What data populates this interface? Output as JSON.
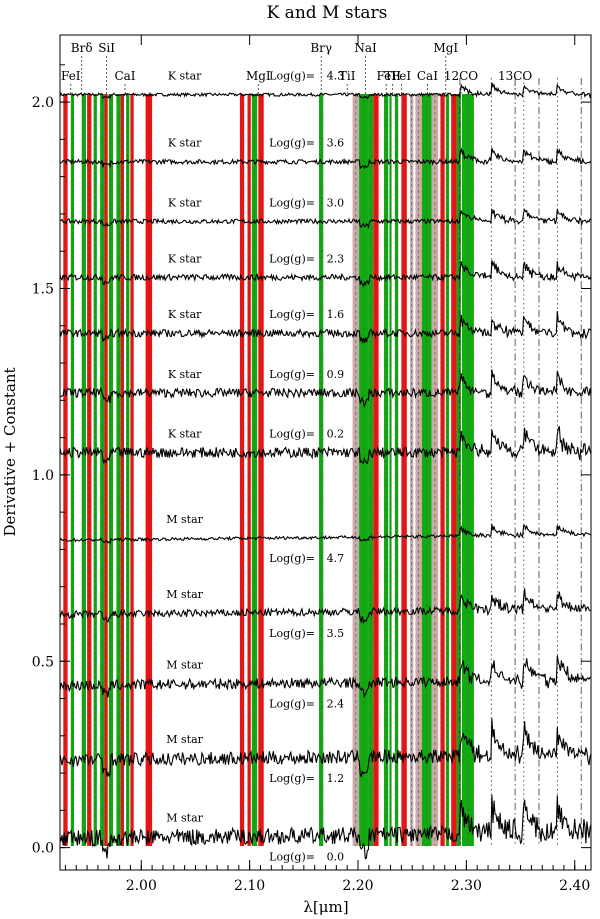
{
  "chart_data": {
    "type": "line",
    "title": "K and M stars",
    "xlabel": "λ[μm]",
    "ylabel": "Derivative + Constant",
    "xlim": [
      1.925,
      2.415
    ],
    "ylim": [
      -0.06,
      2.18
    ],
    "x_ticks": [
      2.0,
      2.1,
      2.2,
      2.3,
      2.4
    ],
    "x_tick_labels": [
      "2.00",
      "2.10",
      "2.20",
      "2.30",
      "2.40"
    ],
    "y_ticks": [
      0.0,
      0.5,
      1.0,
      1.5,
      2.0
    ],
    "y_tick_labels": [
      "0.0",
      "0.5",
      "1.0",
      "1.5",
      "2.0"
    ],
    "grid": false,
    "colors": {
      "red_band": "#ee1111",
      "green_band": "#11aa11",
      "tan_band": "#c8aaa8",
      "spectrum": "#000000"
    },
    "bands": [
      {
        "x0": 1.928,
        "x1": 1.932,
        "color": "red"
      },
      {
        "x0": 1.935,
        "x1": 1.938,
        "color": "green"
      },
      {
        "x0": 1.945,
        "x1": 1.949,
        "color": "green"
      },
      {
        "x0": 1.95,
        "x1": 1.954,
        "color": "red"
      },
      {
        "x0": 1.956,
        "x1": 1.959,
        "color": "green"
      },
      {
        "x0": 1.962,
        "x1": 1.966,
        "color": "green"
      },
      {
        "x0": 1.966,
        "x1": 1.969,
        "color": "red"
      },
      {
        "x0": 1.97,
        "x1": 1.974,
        "color": "green"
      },
      {
        "x0": 1.977,
        "x1": 1.981,
        "color": "green"
      },
      {
        "x0": 1.981,
        "x1": 1.984,
        "color": "red"
      },
      {
        "x0": 1.986,
        "x1": 1.989,
        "color": "green"
      },
      {
        "x0": 1.99,
        "x1": 1.993,
        "color": "red"
      },
      {
        "x0": 2.004,
        "x1": 2.01,
        "color": "red"
      },
      {
        "x0": 2.091,
        "x1": 2.095,
        "color": "red"
      },
      {
        "x0": 2.098,
        "x1": 2.101,
        "color": "red"
      },
      {
        "x0": 2.102,
        "x1": 2.107,
        "color": "green"
      },
      {
        "x0": 2.108,
        "x1": 2.113,
        "color": "red"
      },
      {
        "x0": 2.164,
        "x1": 2.168,
        "color": "green"
      },
      {
        "x0": 2.195,
        "x1": 2.201,
        "color": "tan"
      },
      {
        "x0": 2.201,
        "x1": 2.21,
        "color": "green"
      },
      {
        "x0": 2.21,
        "x1": 2.214,
        "color": "green"
      },
      {
        "x0": 2.214,
        "x1": 2.219,
        "color": "red"
      },
      {
        "x0": 2.224,
        "x1": 2.228,
        "color": "green"
      },
      {
        "x0": 2.229,
        "x1": 2.231,
        "color": "green"
      },
      {
        "x0": 2.234,
        "x1": 2.237,
        "color": "green"
      },
      {
        "x0": 2.24,
        "x1": 2.245,
        "color": "red"
      },
      {
        "x0": 2.248,
        "x1": 2.251,
        "color": "tan"
      },
      {
        "x0": 2.253,
        "x1": 2.259,
        "color": "tan"
      },
      {
        "x0": 2.259,
        "x1": 2.268,
        "color": "green"
      },
      {
        "x0": 2.268,
        "x1": 2.274,
        "color": "tan"
      },
      {
        "x0": 2.276,
        "x1": 2.28,
        "color": "red"
      },
      {
        "x0": 2.281,
        "x1": 2.284,
        "color": "green"
      },
      {
        "x0": 2.286,
        "x1": 2.291,
        "color": "red"
      },
      {
        "x0": 2.291,
        "x1": 2.295,
        "color": "green"
      },
      {
        "x0": 2.296,
        "x1": 2.307,
        "color": "green"
      }
    ],
    "co_markers": [
      2.294,
      2.323,
      2.345,
      2.353,
      2.367,
      2.384,
      2.406
    ],
    "line_labels": [
      {
        "text": "FeI",
        "x": 1.935,
        "y_level": "low"
      },
      {
        "text": "Brδ",
        "x": 1.945,
        "y_level": "high"
      },
      {
        "text": "SiI",
        "x": 1.968,
        "y_level": "high"
      },
      {
        "text": "CaI",
        "x": 1.985,
        "y_level": "low"
      },
      {
        "text": "MgI",
        "x": 2.108,
        "y_level": "base"
      },
      {
        "text": "Brγ",
        "x": 2.166,
        "y_level": "high"
      },
      {
        "text": "TiI",
        "x": 2.19,
        "y_level": "base"
      },
      {
        "text": "NaI",
        "x": 2.207,
        "y_level": "high"
      },
      {
        "text": "FeI",
        "x": 2.226,
        "y_level": "low"
      },
      {
        "text": "TiI",
        "x": 2.232,
        "y_level": "base"
      },
      {
        "text": "FeI",
        "x": 2.24,
        "y_level": "low"
      },
      {
        "text": "CaI",
        "x": 2.264,
        "y_level": "base"
      },
      {
        "text": "MgI",
        "x": 2.281,
        "y_level": "high"
      },
      {
        "text": "12CO",
        "x": 2.295,
        "y_level": "base"
      },
      {
        "text": "13CO",
        "x": 2.345,
        "y_level": "low"
      }
    ],
    "series": [
      {
        "name": "K star",
        "logg_label": "Log(g)=",
        "logg": "4.3",
        "offset": 2.02,
        "noise": 0.002
      },
      {
        "name": "K star",
        "logg_label": "Log(g)=",
        "logg": "3.6",
        "offset": 1.84,
        "noise": 0.003
      },
      {
        "name": "K star",
        "logg_label": "Log(g)=",
        "logg": "3.0",
        "offset": 1.68,
        "noise": 0.003
      },
      {
        "name": "K star",
        "logg_label": "Log(g)=",
        "logg": "2.3",
        "offset": 1.53,
        "noise": 0.004
      },
      {
        "name": "K star",
        "logg_label": "Log(g)=",
        "logg": "1.6",
        "offset": 1.38,
        "noise": 0.005
      },
      {
        "name": "K star",
        "logg_label": "Log(g)=",
        "logg": "0.9",
        "offset": 1.22,
        "noise": 0.006
      },
      {
        "name": "K star",
        "logg_label": "Log(g)=",
        "logg": "0.2",
        "offset": 1.06,
        "noise": 0.007
      },
      {
        "name": "M star",
        "logg_label": "Log(g)=",
        "logg": "4.7",
        "offset": 0.83,
        "noise": 0.002
      },
      {
        "name": "M star",
        "logg_label": "Log(g)=",
        "logg": "3.5",
        "offset": 0.63,
        "noise": 0.005
      },
      {
        "name": "M star",
        "logg_label": "Log(g)=",
        "logg": "2.4",
        "offset": 0.44,
        "noise": 0.007
      },
      {
        "name": "M star",
        "logg_label": "Log(g)=",
        "logg": "1.2",
        "offset": 0.24,
        "noise": 0.009
      },
      {
        "name": "M star",
        "logg_label": "Log(g)=",
        "logg": "0.0",
        "offset": 0.03,
        "noise": 0.011
      }
    ]
  }
}
